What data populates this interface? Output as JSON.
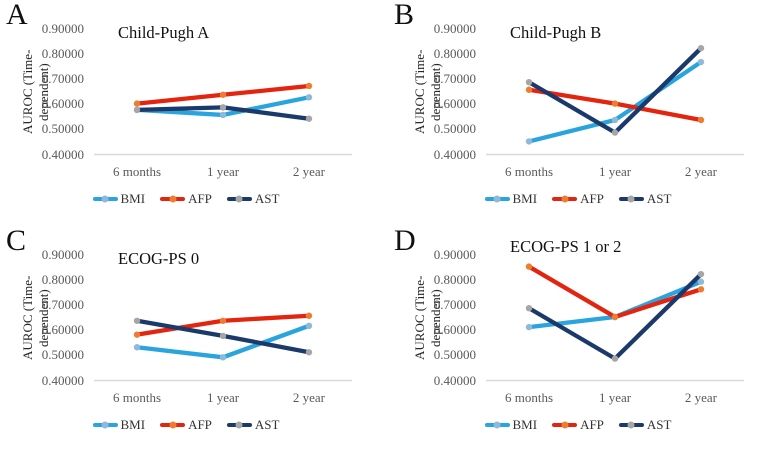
{
  "figure": {
    "background": "#ffffff",
    "axis_line_color": "#d9d9d9",
    "tick_text_color": "#595959",
    "series_colors": {
      "BMI": "#2aa4dd",
      "AFP": "#e3250f",
      "AST": "#1b3a6b"
    },
    "marker_colors": {
      "BMI": "#8fb9d9",
      "AFP": "#ed7d31",
      "AST": "#a6a6a6"
    }
  },
  "chart_data": [
    {
      "type": "line",
      "panel": "A",
      "title": "Child-Pugh A",
      "x": [
        "6 months",
        "1 year",
        "2 year"
      ],
      "ylabel": "AUROC (Time-dependent)",
      "ylim": [
        0.4,
        0.9
      ],
      "ytick_labels": [
        "0.90000",
        "0.80000",
        "0.70000",
        "0.60000",
        "0.50000",
        "0.40000"
      ],
      "grid": "off",
      "legend_position": "bottom",
      "series": [
        {
          "name": "BMI",
          "values": [
            0.575,
            0.555,
            0.625
          ]
        },
        {
          "name": "AFP",
          "values": [
            0.6,
            0.635,
            0.67
          ]
        },
        {
          "name": "AST",
          "values": [
            0.575,
            0.585,
            0.54
          ]
        }
      ]
    },
    {
      "type": "line",
      "panel": "B",
      "title": "Child-Pugh B",
      "x": [
        "6 months",
        "1 year",
        "2 year"
      ],
      "ylabel": "AUROC (Time-dependent)",
      "ylim": [
        0.4,
        0.9
      ],
      "ytick_labels": [
        "0.90000",
        "0.80000",
        "0.70000",
        "0.60000",
        "0.50000",
        "0.40000"
      ],
      "grid": "off",
      "legend_position": "bottom",
      "series": [
        {
          "name": "BMI",
          "values": [
            0.45,
            0.535,
            0.765
          ]
        },
        {
          "name": "AFP",
          "values": [
            0.655,
            0.6,
            0.535
          ]
        },
        {
          "name": "AST",
          "values": [
            0.685,
            0.485,
            0.82
          ]
        }
      ]
    },
    {
      "type": "line",
      "panel": "C",
      "title": "ECOG-PS 0",
      "x": [
        "6 months",
        "1 year",
        "2 year"
      ],
      "ylabel": "AUROC (Time-dependent)",
      "ylim": [
        0.4,
        0.9
      ],
      "ytick_labels": [
        "0.90000",
        "0.80000",
        "0.70000",
        "0.60000",
        "0.50000",
        "0.40000"
      ],
      "grid": "off",
      "legend_position": "bottom",
      "series": [
        {
          "name": "BMI",
          "values": [
            0.53,
            0.49,
            0.615
          ]
        },
        {
          "name": "AFP",
          "values": [
            0.58,
            0.635,
            0.655
          ]
        },
        {
          "name": "AST",
          "values": [
            0.635,
            0.575,
            0.51
          ]
        }
      ]
    },
    {
      "type": "line",
      "panel": "D",
      "title": "ECOG-PS 1 or 2",
      "x": [
        "6 months",
        "1 year",
        "2 year"
      ],
      "ylabel": "AUROC (Time-dependent)",
      "ylim": [
        0.4,
        0.9
      ],
      "ytick_labels": [
        "0.90000",
        "0.80000",
        "0.70000",
        "0.60000",
        "0.50000",
        "0.40000"
      ],
      "grid": "off",
      "legend_position": "bottom",
      "series": [
        {
          "name": "BMI",
          "values": [
            0.61,
            0.65,
            0.79
          ]
        },
        {
          "name": "AFP",
          "values": [
            0.85,
            0.65,
            0.76
          ]
        },
        {
          "name": "AST",
          "values": [
            0.685,
            0.485,
            0.82
          ]
        }
      ]
    }
  ]
}
